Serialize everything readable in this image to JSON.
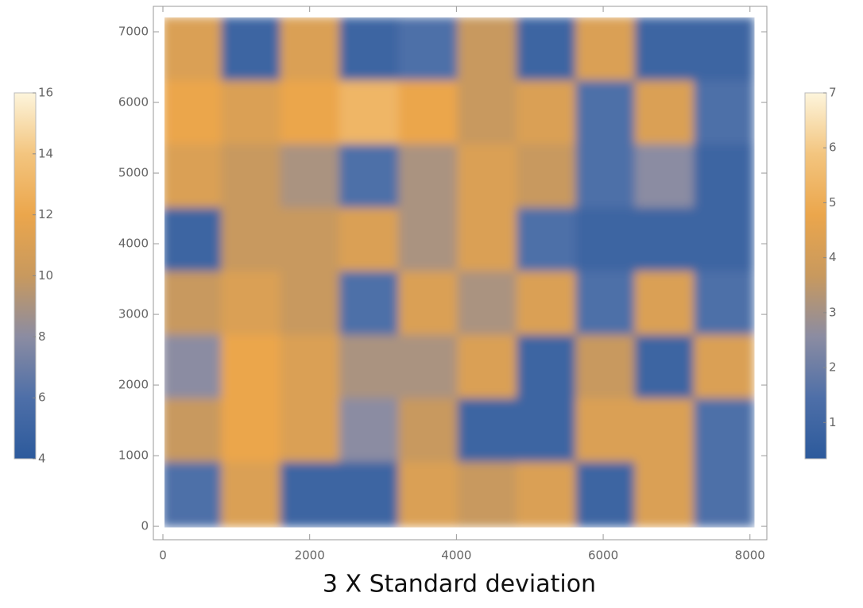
{
  "chart_data": {
    "type": "heatmap",
    "caption": "3 X Standard deviation",
    "x": [
      402,
      1207,
      2012,
      2817,
      3622,
      4427,
      5232,
      6037,
      6842,
      7647
    ],
    "y": [
      6750,
      5850,
      4950,
      4050,
      3150,
      2250,
      1350,
      450
    ],
    "z": [
      [
        11,
        5,
        11,
        5,
        6,
        10,
        5,
        11,
        5,
        5
      ],
      [
        12,
        11,
        12,
        13,
        12,
        10,
        11,
        6,
        11,
        6
      ],
      [
        11,
        10,
        9,
        6,
        9,
        11,
        10,
        6,
        8,
        5
      ],
      [
        5,
        10,
        10,
        11,
        9,
        11,
        6,
        5,
        5,
        5
      ],
      [
        10,
        11,
        10,
        6,
        11,
        9,
        11,
        6,
        11,
        6
      ],
      [
        8,
        12,
        11,
        9,
        9,
        11,
        5,
        10,
        5,
        11
      ],
      [
        10,
        12,
        11,
        8,
        10,
        5,
        5,
        11,
        11,
        6
      ],
      [
        6,
        11,
        5,
        5,
        11,
        10,
        11,
        5,
        11,
        6
      ]
    ],
    "xlim": [
      -130,
      8230
    ],
    "ylim": [
      -190,
      7360
    ],
    "xticks": [
      0,
      2000,
      4000,
      6000,
      8000
    ],
    "yticks": [
      0,
      1000,
      2000,
      3000,
      4000,
      5000,
      6000,
      7000
    ],
    "colorscale": [
      "#2c5a9c",
      "#4e6fa8",
      "#8b8ca2",
      "#c8995e",
      "#eba64c",
      "#f3c57f",
      "#fdf5dc"
    ],
    "colorbars": [
      {
        "position": "left",
        "range": [
          4,
          16
        ],
        "ticks": [
          4,
          6,
          8,
          10,
          12,
          14,
          16
        ]
      },
      {
        "position": "right",
        "range": [
          0.34,
          7
        ],
        "ticks": [
          1,
          2,
          3,
          4,
          5,
          6,
          7
        ]
      }
    ]
  }
}
